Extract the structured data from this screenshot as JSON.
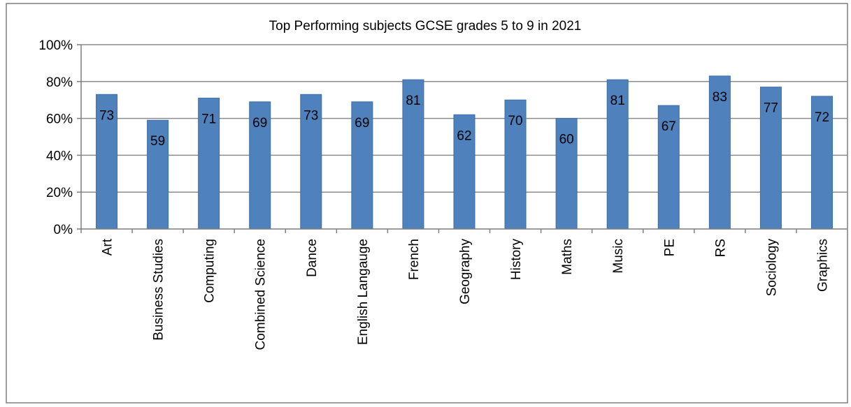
{
  "chart_data": {
    "type": "bar",
    "title": "Top Performing subjects GCSE grades 5 to 9 in 2021",
    "xlabel": "",
    "ylabel": "",
    "categories": [
      "Art",
      "Business Studies",
      "Computing",
      "Combined Science",
      "Dance",
      "English Langauge",
      "French",
      "Geography",
      "History",
      "Maths",
      "Music",
      "PE",
      "RS",
      "Sociology",
      "Graphics"
    ],
    "values": [
      73,
      59,
      71,
      69,
      73,
      69,
      81,
      62,
      70,
      60,
      81,
      67,
      83,
      77,
      72
    ],
    "data_labels": [
      "73",
      "59",
      "71",
      "69",
      "73",
      "69",
      "81",
      "62",
      "70",
      "60",
      "81",
      "67",
      "83",
      "77",
      "72"
    ],
    "ylim": [
      0,
      100
    ],
    "yticks": [
      0,
      20,
      40,
      60,
      80,
      100
    ],
    "ytick_labels": [
      "0%",
      "20%",
      "40%",
      "60%",
      "80%",
      "100%"
    ],
    "grid": true,
    "legend": "none",
    "colors": {
      "bar": "#4f81bd",
      "bar_edge": "#3d6ea8",
      "grid": "#8c8c8c",
      "frame": "#7f7f7f",
      "text": "#000000"
    }
  }
}
